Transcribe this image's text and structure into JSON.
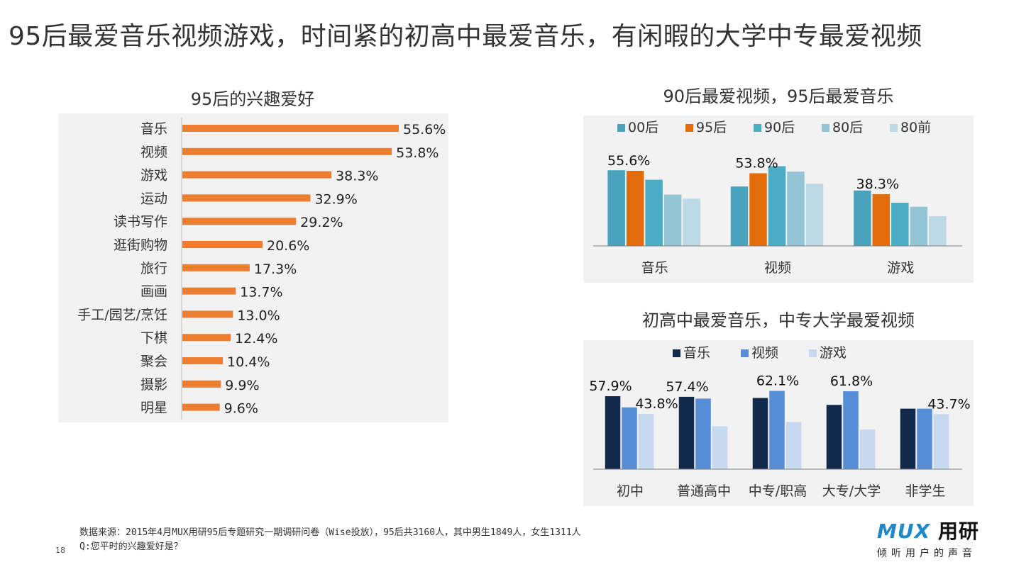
{
  "headline": "95后最爱音乐视频游戏，时间紧的初高中最爱音乐，有闲暇的大学中专最爱视频",
  "page_number": "18",
  "footer": {
    "source_line": "数据来源：2015年4月MUX用研95后专题研究一期调研问卷（Wise投放），95后共3160人，其中男生1849人，女生1311人",
    "question_line": "Q:您平时的兴趣爱好是？"
  },
  "logo": {
    "mark": "MUX",
    "name": "用研",
    "slogan": "倾听用户的声音"
  },
  "colors": {
    "bar_orange": "#ed7d31",
    "gen_00": "#4aa3bd",
    "gen_95": "#e36c0a",
    "gen_90": "#4bacc6",
    "gen_80": "#93c5d6",
    "gen_80pre": "#bdd9e6",
    "music": "#13294b",
    "video": "#558ed5",
    "game": "#c6d9f1",
    "panel_bg": "#f2f2f2"
  },
  "chart_data": [
    {
      "type": "bar",
      "orientation": "horizontal",
      "title": "95后的兴趣爱好",
      "categories": [
        "音乐",
        "视频",
        "游戏",
        "运动",
        "读书写作",
        "逛街购物",
        "旅行",
        "画画",
        "手工/园艺/烹饪",
        "下棋",
        "聚会",
        "摄影",
        "明星"
      ],
      "values": [
        55.6,
        53.8,
        38.3,
        32.9,
        29.2,
        20.6,
        17.3,
        13.7,
        13.0,
        12.4,
        10.4,
        9.9,
        9.6
      ],
      "labels": [
        "55.6%",
        "53.8%",
        "38.3%",
        "32.9%",
        "29.2%",
        "20.6%",
        "17.3%",
        "13.7%",
        "13.0%",
        "12.4%",
        "10.4%",
        "9.9%",
        "9.6%"
      ],
      "xlim": [
        0,
        65
      ]
    },
    {
      "type": "bar",
      "title": "90后最爱视频，95后最爱音乐",
      "categories": [
        "音乐",
        "视频",
        "游戏"
      ],
      "series": [
        {
          "name": "00后",
          "values": [
            56,
            44,
            41
          ]
        },
        {
          "name": "95后",
          "values": [
            55.6,
            53.8,
            38.3
          ]
        },
        {
          "name": "90后",
          "values": [
            49,
            59,
            32
          ]
        },
        {
          "name": "80后",
          "values": [
            38,
            55,
            29
          ]
        },
        {
          "name": "80前",
          "values": [
            35,
            46,
            22
          ]
        }
      ],
      "data_labels": [
        "55.6%",
        "53.8%",
        "38.3%"
      ],
      "legend": "top",
      "ylim": [
        0,
        75
      ]
    },
    {
      "type": "bar",
      "title": "初高中最爱音乐，中专大学最爱视频",
      "categories": [
        "初中",
        "普通高中",
        "中专/职高",
        "大专/大学",
        "非学生"
      ],
      "series": [
        {
          "name": "音乐",
          "values": [
            57.9,
            57.4,
            56.5,
            51.0,
            48.0
          ]
        },
        {
          "name": "视频",
          "values": [
            49.0,
            56.0,
            62.1,
            61.8,
            48.0
          ]
        },
        {
          "name": "游戏",
          "values": [
            43.8,
            34.0,
            37.5,
            31.5,
            43.7
          ]
        }
      ],
      "data_labels": [
        "57.9%",
        "43.8%",
        "57.4%",
        "62.1%",
        "61.8%",
        "43.7%"
      ],
      "legend": "top",
      "ylim": [
        0,
        75
      ]
    }
  ]
}
